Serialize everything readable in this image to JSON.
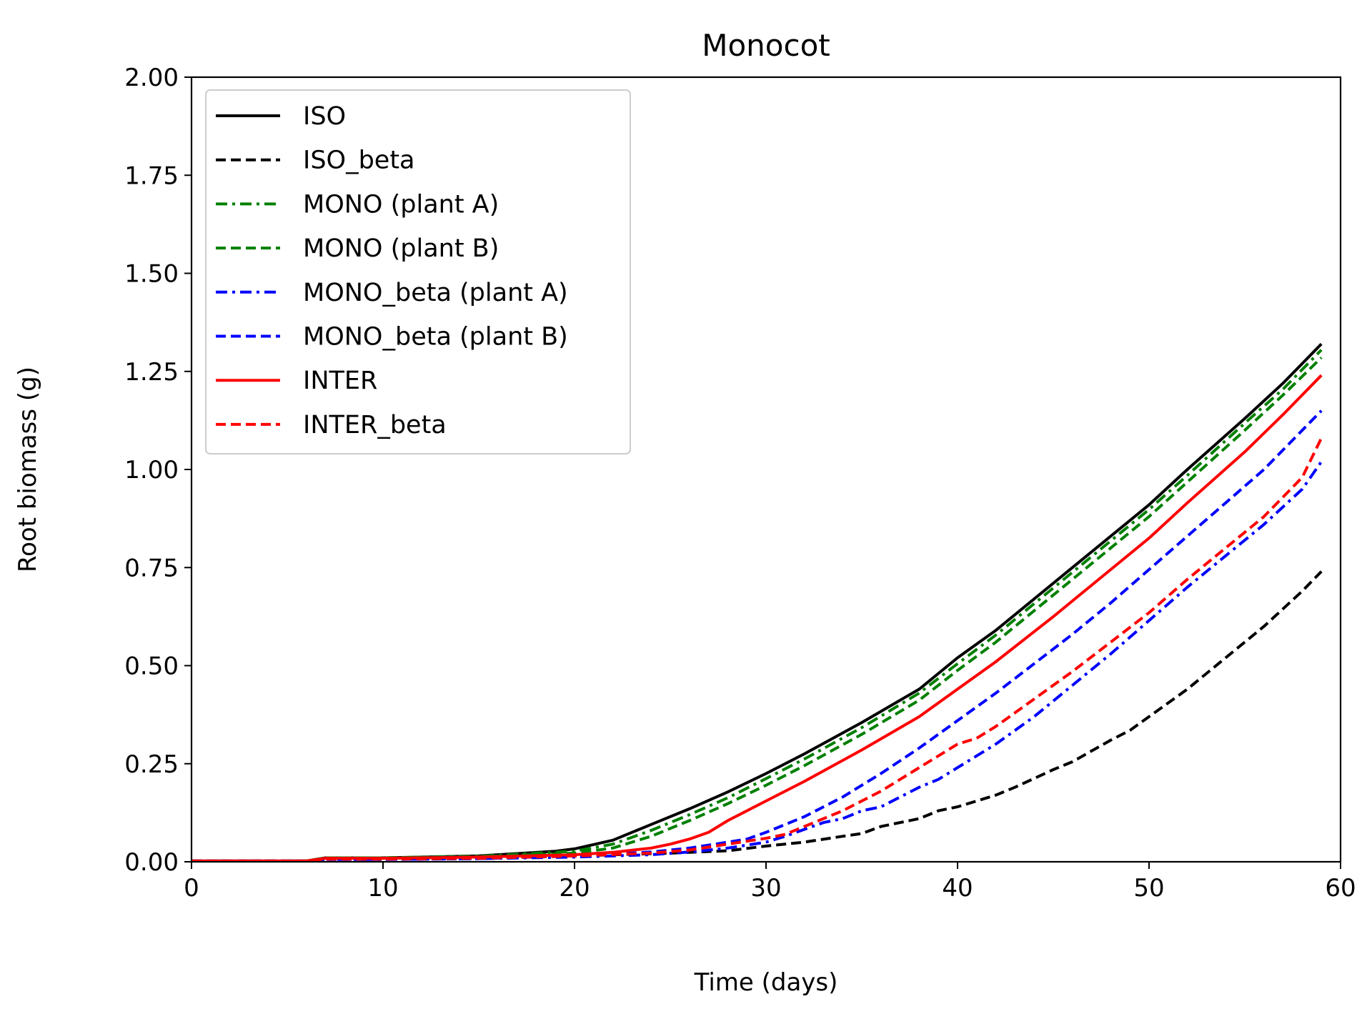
{
  "chart_data": {
    "type": "line",
    "title": "Monocot",
    "xlabel": "Time (days)",
    "ylabel": "Root biomass (g)",
    "xlim": [
      0,
      60
    ],
    "ylim": [
      0,
      2.0
    ],
    "xticks": [
      0,
      10,
      20,
      30,
      40,
      50,
      60
    ],
    "yticks": [
      0,
      0.25,
      0.5,
      0.75,
      1.0,
      1.25,
      1.5,
      1.75,
      2.0
    ],
    "xtick_labels": [
      "0",
      "10",
      "20",
      "30",
      "40",
      "50",
      "60"
    ],
    "ytick_labels": [
      "0.00",
      "0.25",
      "0.50",
      "0.75",
      "1.00",
      "1.25",
      "1.50",
      "1.75",
      "2.00"
    ],
    "grid": false,
    "legend_position": "upper-left",
    "series": [
      {
        "name": "ISO",
        "color": "#000000",
        "style": "solid",
        "points": [
          [
            0,
            0.002
          ],
          [
            6,
            0.002
          ],
          [
            7,
            0.01
          ],
          [
            10,
            0.01
          ],
          [
            15,
            0.015
          ],
          [
            19,
            0.027
          ],
          [
            20,
            0.033
          ],
          [
            22,
            0.055
          ],
          [
            24,
            0.095
          ],
          [
            26,
            0.135
          ],
          [
            28,
            0.178
          ],
          [
            30,
            0.225
          ],
          [
            32,
            0.275
          ],
          [
            35,
            0.355
          ],
          [
            38,
            0.44
          ],
          [
            40,
            0.52
          ],
          [
            42,
            0.59
          ],
          [
            45,
            0.71
          ],
          [
            48,
            0.83
          ],
          [
            50,
            0.91
          ],
          [
            52,
            1.0
          ],
          [
            55,
            1.13
          ],
          [
            57,
            1.22
          ],
          [
            59,
            1.32
          ]
        ]
      },
      {
        "name": "ISO_beta",
        "color": "#000000",
        "style": "dashed",
        "points": [
          [
            0,
            0.002
          ],
          [
            6,
            0.002
          ],
          [
            7,
            0.008
          ],
          [
            10,
            0.008
          ],
          [
            15,
            0.01
          ],
          [
            20,
            0.015
          ],
          [
            25,
            0.022
          ],
          [
            28,
            0.028
          ],
          [
            30,
            0.04
          ],
          [
            32,
            0.05
          ],
          [
            34,
            0.065
          ],
          [
            35,
            0.072
          ],
          [
            36,
            0.09
          ],
          [
            38,
            0.11
          ],
          [
            39,
            0.13
          ],
          [
            40,
            0.14
          ],
          [
            42,
            0.17
          ],
          [
            43,
            0.19
          ],
          [
            45,
            0.235
          ],
          [
            46,
            0.255
          ],
          [
            48,
            0.31
          ],
          [
            49,
            0.335
          ],
          [
            50,
            0.37
          ],
          [
            52,
            0.44
          ],
          [
            54,
            0.52
          ],
          [
            56,
            0.6
          ],
          [
            58,
            0.69
          ],
          [
            59,
            0.74
          ]
        ]
      },
      {
        "name": "MONO (plant A)",
        "color": "#008000",
        "style": "dashdot",
        "points": [
          [
            0,
            0.002
          ],
          [
            6,
            0.002
          ],
          [
            7,
            0.01
          ],
          [
            10,
            0.01
          ],
          [
            15,
            0.014
          ],
          [
            20,
            0.027
          ],
          [
            22,
            0.045
          ],
          [
            24,
            0.08
          ],
          [
            26,
            0.12
          ],
          [
            28,
            0.163
          ],
          [
            30,
            0.212
          ],
          [
            32,
            0.262
          ],
          [
            35,
            0.342
          ],
          [
            38,
            0.43
          ],
          [
            40,
            0.505
          ],
          [
            42,
            0.578
          ],
          [
            45,
            0.698
          ],
          [
            48,
            0.818
          ],
          [
            50,
            0.898
          ],
          [
            52,
            0.985
          ],
          [
            55,
            1.118
          ],
          [
            57,
            1.205
          ],
          [
            59,
            1.305
          ]
        ]
      },
      {
        "name": "MONO (plant B)",
        "color": "#008000",
        "style": "dashed",
        "points": [
          [
            0,
            0.002
          ],
          [
            6,
            0.002
          ],
          [
            7,
            0.01
          ],
          [
            10,
            0.01
          ],
          [
            15,
            0.013
          ],
          [
            20,
            0.022
          ],
          [
            22,
            0.035
          ],
          [
            24,
            0.065
          ],
          [
            26,
            0.105
          ],
          [
            28,
            0.148
          ],
          [
            30,
            0.195
          ],
          [
            32,
            0.245
          ],
          [
            35,
            0.325
          ],
          [
            38,
            0.412
          ],
          [
            40,
            0.488
          ],
          [
            42,
            0.56
          ],
          [
            45,
            0.68
          ],
          [
            48,
            0.8
          ],
          [
            50,
            0.88
          ],
          [
            52,
            0.968
          ],
          [
            55,
            1.1
          ],
          [
            57,
            1.19
          ],
          [
            59,
            1.285
          ]
        ]
      },
      {
        "name": "MONO_beta (plant A)",
        "color": "#0000ff",
        "style": "dashdot",
        "points": [
          [
            0,
            0.002
          ],
          [
            6,
            0.002
          ],
          [
            7,
            0.006
          ],
          [
            10,
            0.006
          ],
          [
            15,
            0.008
          ],
          [
            20,
            0.012
          ],
          [
            24,
            0.018
          ],
          [
            26,
            0.025
          ],
          [
            28,
            0.035
          ],
          [
            30,
            0.05
          ],
          [
            31,
            0.065
          ],
          [
            33,
            0.1
          ],
          [
            34,
            0.11
          ],
          [
            35,
            0.13
          ],
          [
            36,
            0.14
          ],
          [
            37,
            0.165
          ],
          [
            38,
            0.19
          ],
          [
            39,
            0.21
          ],
          [
            40,
            0.24
          ],
          [
            42,
            0.3
          ],
          [
            44,
            0.37
          ],
          [
            46,
            0.45
          ],
          [
            48,
            0.53
          ],
          [
            50,
            0.615
          ],
          [
            52,
            0.7
          ],
          [
            54,
            0.78
          ],
          [
            56,
            0.86
          ],
          [
            58,
            0.95
          ],
          [
            59,
            1.02
          ]
        ]
      },
      {
        "name": "MONO_beta (plant B)",
        "color": "#0000ff",
        "style": "dashed",
        "points": [
          [
            0,
            0.002
          ],
          [
            6,
            0.002
          ],
          [
            7,
            0.006
          ],
          [
            10,
            0.006
          ],
          [
            15,
            0.008
          ],
          [
            20,
            0.015
          ],
          [
            24,
            0.025
          ],
          [
            26,
            0.035
          ],
          [
            28,
            0.05
          ],
          [
            29,
            0.058
          ],
          [
            30,
            0.075
          ],
          [
            31,
            0.095
          ],
          [
            32,
            0.115
          ],
          [
            33,
            0.14
          ],
          [
            34,
            0.165
          ],
          [
            35,
            0.195
          ],
          [
            36,
            0.225
          ],
          [
            38,
            0.29
          ],
          [
            40,
            0.36
          ],
          [
            42,
            0.43
          ],
          [
            44,
            0.505
          ],
          [
            46,
            0.58
          ],
          [
            48,
            0.66
          ],
          [
            50,
            0.745
          ],
          [
            52,
            0.83
          ],
          [
            54,
            0.915
          ],
          [
            56,
            1.0
          ],
          [
            58,
            1.1
          ],
          [
            59,
            1.15
          ]
        ]
      },
      {
        "name": "INTER",
        "color": "#ff0000",
        "style": "solid",
        "points": [
          [
            0,
            0.002
          ],
          [
            6,
            0.002
          ],
          [
            7,
            0.009
          ],
          [
            10,
            0.009
          ],
          [
            15,
            0.012
          ],
          [
            20,
            0.018
          ],
          [
            22,
            0.024
          ],
          [
            24,
            0.035
          ],
          [
            25,
            0.045
          ],
          [
            26,
            0.058
          ],
          [
            27,
            0.075
          ],
          [
            28,
            0.105
          ],
          [
            30,
            0.155
          ],
          [
            32,
            0.205
          ],
          [
            35,
            0.285
          ],
          [
            38,
            0.37
          ],
          [
            40,
            0.44
          ],
          [
            42,
            0.51
          ],
          [
            45,
            0.625
          ],
          [
            48,
            0.745
          ],
          [
            50,
            0.825
          ],
          [
            52,
            0.915
          ],
          [
            55,
            1.045
          ],
          [
            57,
            1.14
          ],
          [
            59,
            1.24
          ]
        ]
      },
      {
        "name": "INTER_beta",
        "color": "#ff0000",
        "style": "dashed",
        "points": [
          [
            0,
            0.002
          ],
          [
            6,
            0.002
          ],
          [
            7,
            0.007
          ],
          [
            10,
            0.007
          ],
          [
            15,
            0.009
          ],
          [
            20,
            0.015
          ],
          [
            24,
            0.022
          ],
          [
            26,
            0.03
          ],
          [
            28,
            0.045
          ],
          [
            30,
            0.06
          ],
          [
            31,
            0.07
          ],
          [
            32,
            0.09
          ],
          [
            33,
            0.11
          ],
          [
            34,
            0.13
          ],
          [
            35,
            0.155
          ],
          [
            36,
            0.18
          ],
          [
            38,
            0.24
          ],
          [
            39,
            0.27
          ],
          [
            40,
            0.3
          ],
          [
            41,
            0.315
          ],
          [
            42,
            0.345
          ],
          [
            44,
            0.415
          ],
          [
            46,
            0.485
          ],
          [
            48,
            0.56
          ],
          [
            50,
            0.635
          ],
          [
            52,
            0.72
          ],
          [
            54,
            0.8
          ],
          [
            56,
            0.88
          ],
          [
            58,
            0.98
          ],
          [
            59,
            1.08
          ]
        ]
      }
    ]
  }
}
